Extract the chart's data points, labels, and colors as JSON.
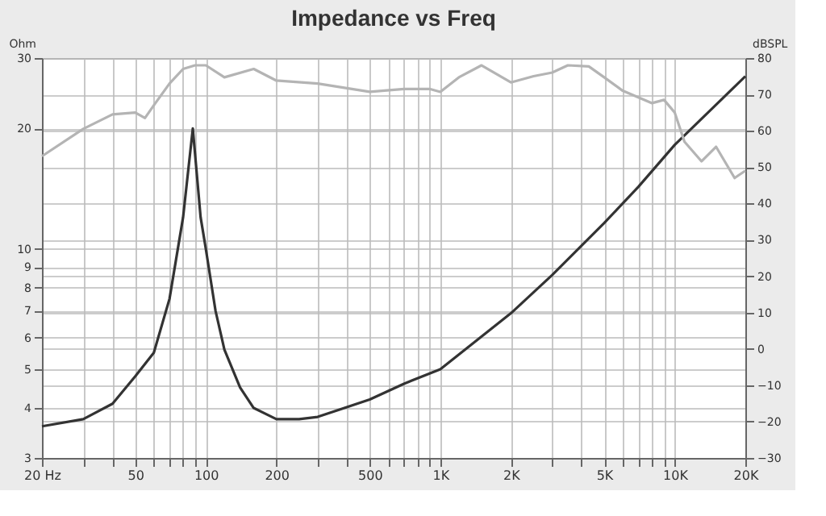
{
  "chart_data": {
    "type": "line",
    "title": "Impedance vs Freq",
    "ylabel": "Ohm",
    "y2label": "dBSPL",
    "series": [
      {
        "color": "#333333",
        "axis": "y",
        "x": [
          20,
          30,
          40,
          50,
          60,
          70,
          80,
          88,
          95,
          100,
          110,
          120,
          140,
          160,
          200,
          250,
          300,
          500,
          700,
          1000,
          2000,
          3000,
          5000,
          7000,
          10000,
          20000
        ],
        "values": [
          3.6,
          3.75,
          4.1,
          4.8,
          5.5,
          7.5,
          12,
          20,
          12,
          10,
          7,
          5.6,
          4.5,
          4.0,
          3.75,
          3.75,
          3.8,
          4.2,
          4.6,
          5.0,
          6.9,
          8.6,
          11.6,
          14.3,
          18.2,
          27
        ]
      },
      {
        "color": "#b4b4b4",
        "axis": "y2",
        "x": [
          20,
          30,
          40,
          50,
          55,
          60,
          70,
          80,
          90,
          100,
          120,
          160,
          200,
          300,
          500,
          700,
          900,
          1000,
          1200,
          1500,
          2000,
          2500,
          3000,
          3500,
          4300,
          5000,
          6000,
          8000,
          9000,
          10000,
          11000,
          13000,
          15000,
          18000,
          20000
        ],
        "values": [
          53,
          60.5,
          64.5,
          65,
          63.5,
          67,
          73,
          77,
          78,
          78,
          74.7,
          77,
          73.8,
          73,
          70.7,
          71.5,
          71.5,
          70.7,
          74.7,
          78,
          73.3,
          75,
          76,
          78,
          77.7,
          74.7,
          71,
          67.6,
          68.5,
          65,
          57,
          51.6,
          55.6,
          47,
          49
        ]
      }
    ],
    "log": "xy",
    "xlim": [
      20,
      20000
    ],
    "xticks": [
      {
        "value": 20,
        "label": "20 Hz"
      },
      {
        "value": 30,
        "label": null
      },
      {
        "value": 40,
        "label": null
      },
      50,
      {
        "value": 60,
        "label": null
      },
      {
        "value": 70,
        "label": null
      },
      {
        "value": 80,
        "label": null
      },
      {
        "value": 90,
        "label": null
      },
      100,
      200,
      {
        "value": 300,
        "label": null
      },
      {
        "value": 400,
        "label": null
      },
      500,
      {
        "value": 600,
        "label": null
      },
      {
        "value": 700,
        "label": null
      },
      {
        "value": 800,
        "label": null
      },
      {
        "value": 900,
        "label": null
      },
      {
        "value": 1000,
        "label": "1K"
      },
      {
        "value": 2000,
        "label": "2K"
      },
      {
        "value": 3000,
        "label": null
      },
      {
        "value": 4000,
        "label": null
      },
      {
        "value": 5000,
        "label": "5K"
      },
      {
        "value": 6000,
        "label": null
      },
      {
        "value": 7000,
        "label": null
      },
      {
        "value": 8000,
        "label": null
      },
      {
        "value": 9000,
        "label": null
      },
      {
        "value": 10000,
        "label": "10K"
      },
      {
        "value": 20000,
        "label": "20K"
      }
    ],
    "ylim": [
      3,
      30
    ],
    "yticks": [
      3,
      4,
      5,
      6,
      7,
      8,
      9,
      10,
      20,
      30
    ],
    "y2lim": [
      -30,
      80
    ],
    "y2ticks": [
      -30,
      -20,
      -10,
      0,
      10,
      20,
      30,
      40,
      50,
      60,
      70,
      80
    ],
    "grid": true,
    "marker": "none",
    "line_style": "solid"
  }
}
